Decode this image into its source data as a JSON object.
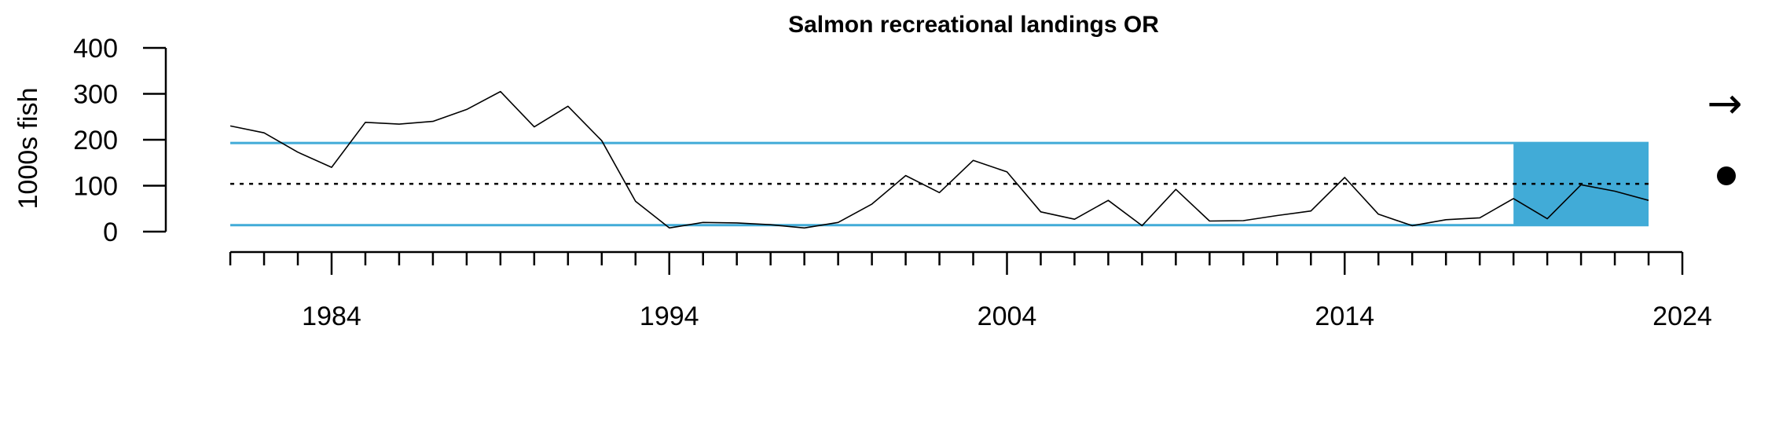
{
  "chart_data": {
    "type": "line",
    "title": "Salmon recreational landings OR",
    "xlabel": "",
    "ylabel": "1000s fish",
    "xlim": [
      1981,
      2024
    ],
    "ylim": [
      0,
      400
    ],
    "x_tick_labels": [
      1984,
      1994,
      2004,
      2014,
      2024
    ],
    "y_ticks": [
      0,
      100,
      200,
      300,
      400
    ],
    "x": [
      1981,
      1982,
      1983,
      1984,
      1985,
      1986,
      1987,
      1988,
      1989,
      1990,
      1991,
      1992,
      1993,
      1994,
      1995,
      1996,
      1997,
      1998,
      1999,
      2000,
      2001,
      2002,
      2003,
      2004,
      2005,
      2006,
      2007,
      2008,
      2009,
      2010,
      2011,
      2012,
      2013,
      2014,
      2015,
      2016,
      2017,
      2018,
      2019,
      2020,
      2021,
      2022,
      2023
    ],
    "series": [
      {
        "values": [
          230,
          215,
          173,
          140,
          238,
          234,
          240,
          266,
          305,
          228,
          273,
          198,
          66,
          8,
          20,
          19,
          15,
          8,
          20,
          60,
          122,
          85,
          155,
          130,
          43,
          27,
          68,
          13,
          92,
          23,
          24,
          35,
          45,
          118,
          38,
          13,
          26,
          30,
          72,
          28,
          102,
          88,
          68
        ],
        "color": "#000000"
      }
    ],
    "reference_lines": {
      "mean": 104,
      "upper_sd": 193,
      "lower_sd": 14,
      "band_color": "#41ABD7"
    },
    "highlight_window": {
      "x_start": 2019,
      "x_end": 2023,
      "color": "#41ABD7"
    },
    "trend_indicator": {
      "direction": "right-arrow",
      "glyph": "→"
    },
    "status_indicator": {
      "shape": "filled-circle"
    },
    "grid": false
  }
}
